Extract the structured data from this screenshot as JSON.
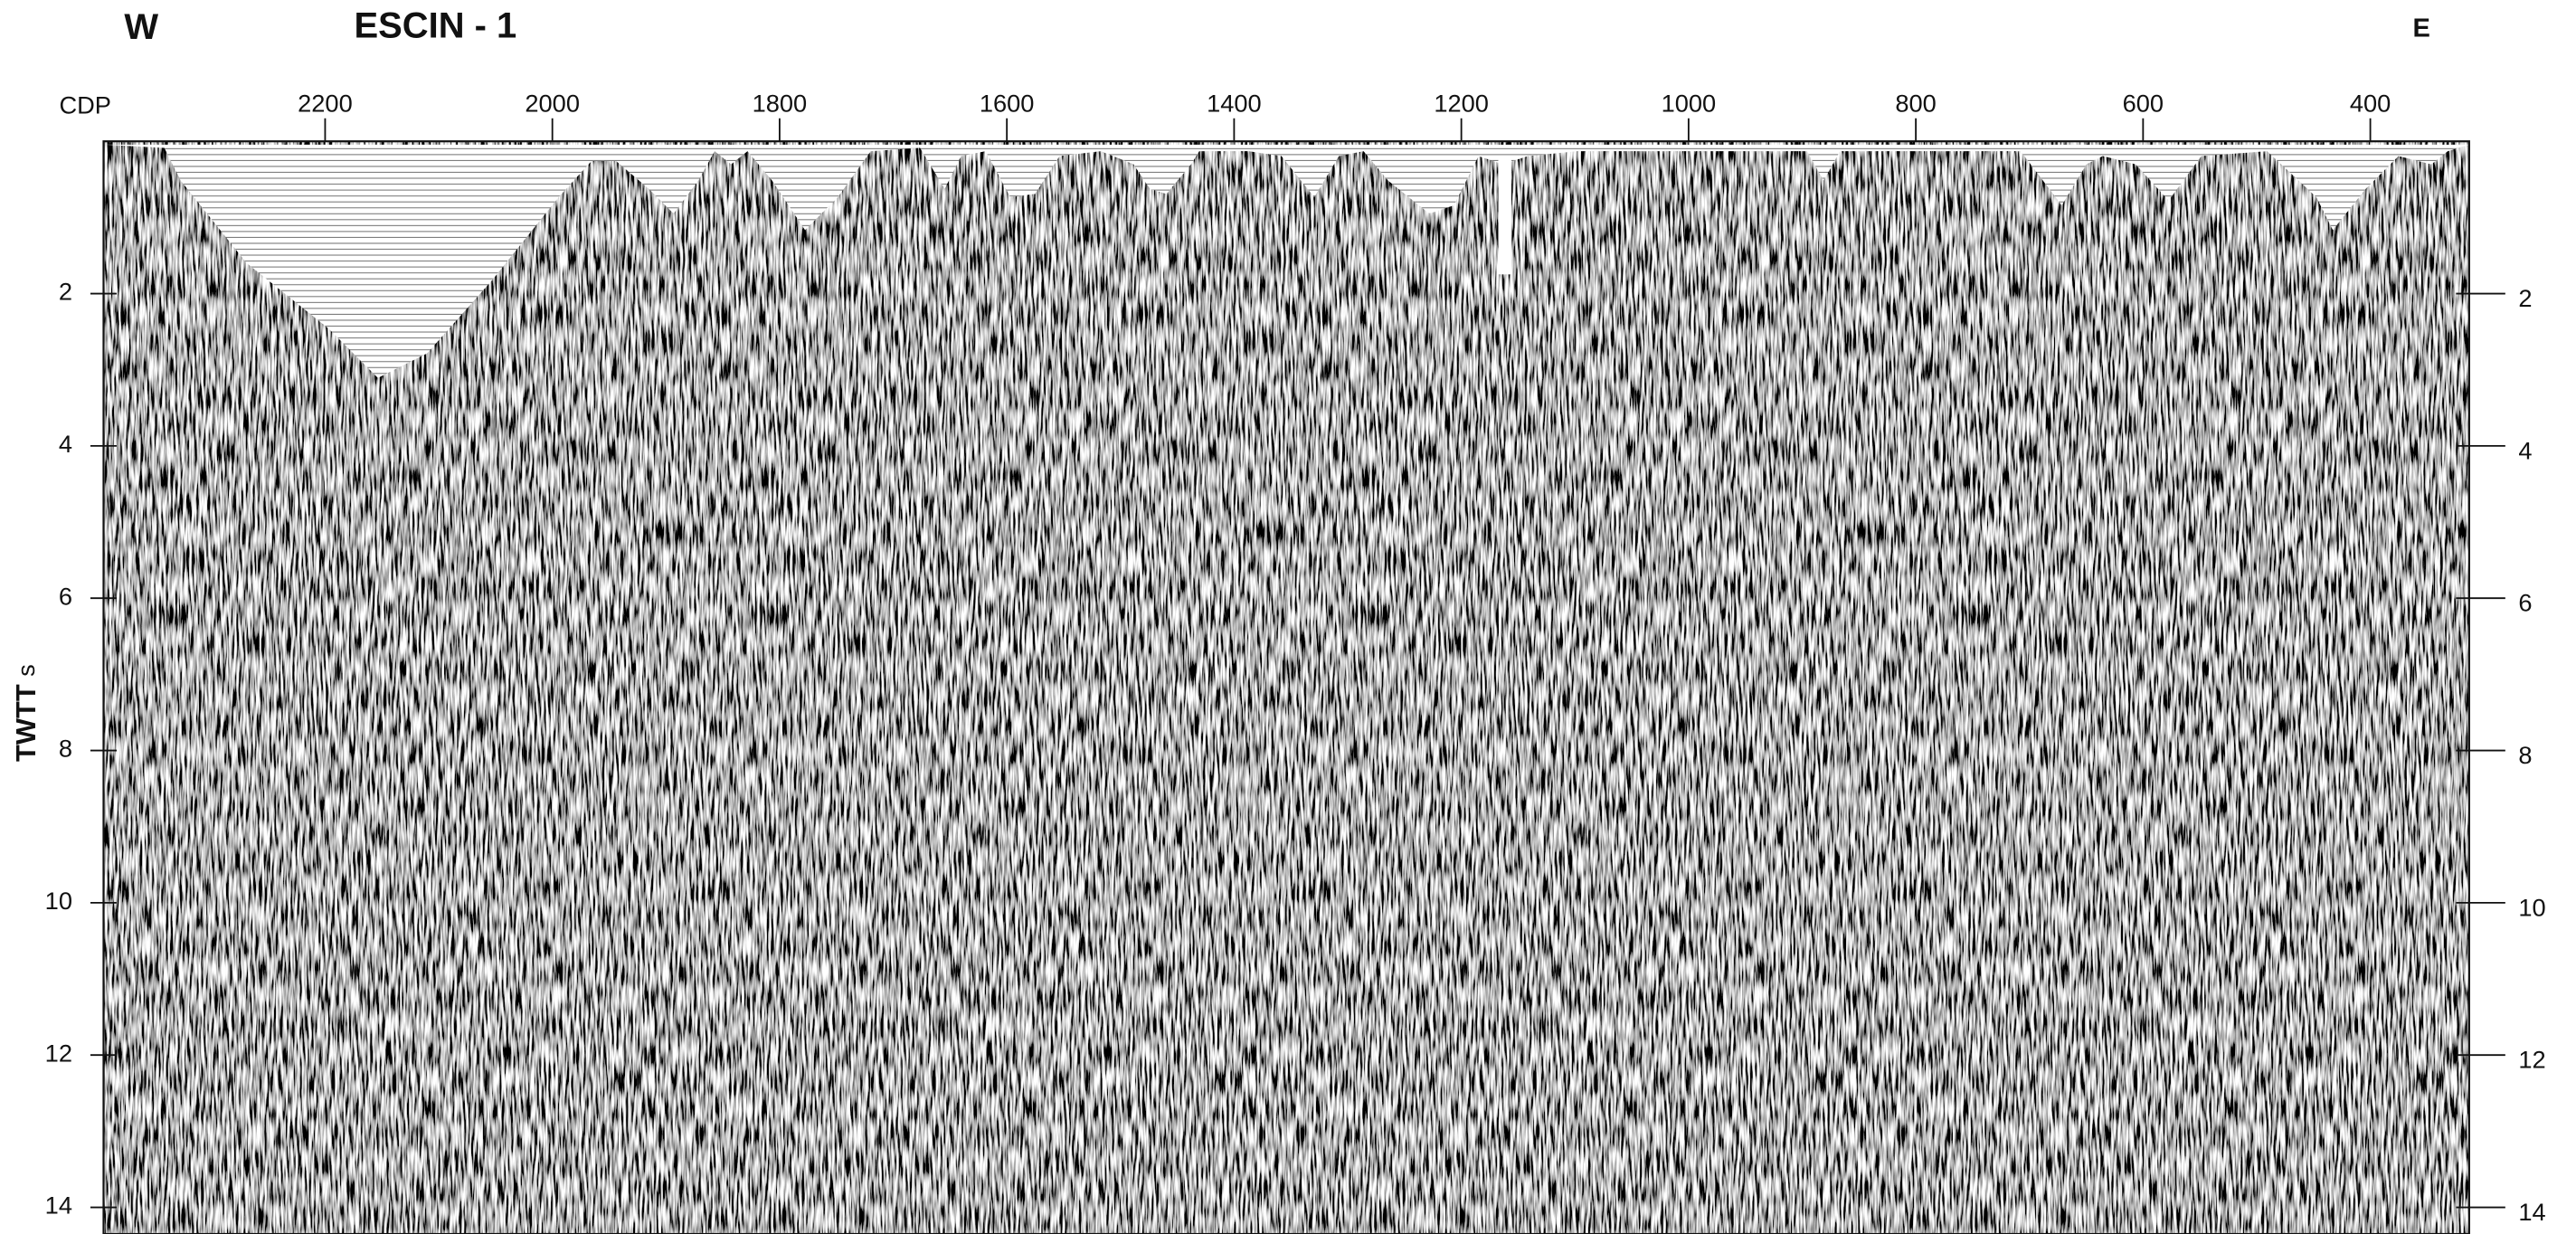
{
  "chart_data": {
    "type": "seismic-section",
    "title": "ESCIN - 1",
    "left_label": "W",
    "right_label": "E",
    "x_label": "CDP",
    "y_label": "TWTT",
    "y_unit": "s",
    "xlim": [
      2395,
      313
    ],
    "xticks": [
      2200,
      2000,
      1800,
      1600,
      1400,
      1200,
      1000,
      800,
      600,
      400
    ],
    "ylim": [
      0,
      14.35
    ],
    "yticks": [
      2,
      4,
      6,
      8,
      10,
      12,
      14
    ],
    "y_inverted": true
  }
}
